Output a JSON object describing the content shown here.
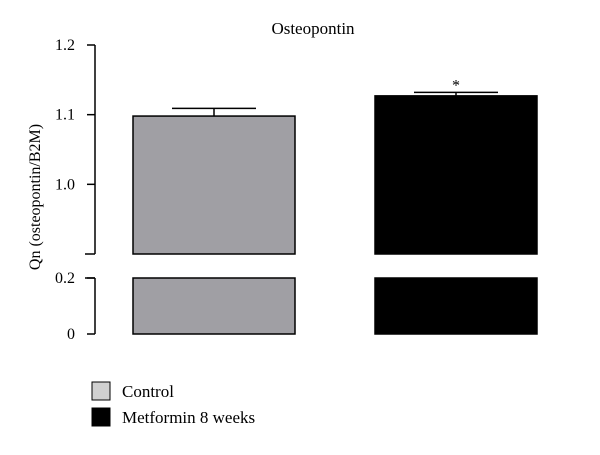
{
  "chart_data": {
    "type": "bar",
    "title": "Osteopontin",
    "xlabel": "",
    "ylabel": "Qn (osteopontin/B2M)",
    "categories": [
      "Control",
      "Metformin 8 weeks"
    ],
    "values": [
      1.098,
      1.127
    ],
    "errors": [
      0.011,
      0.005
    ],
    "colors": [
      "#a09fa4",
      "#000000"
    ],
    "annotations": [
      "",
      "*"
    ],
    "axis_break": {
      "lower_max": 0.2,
      "upper_min": 0.9
    },
    "ylim": [
      0,
      1.2
    ],
    "yticks": [
      {
        "value": 0,
        "label": "0"
      },
      {
        "value": 0.2,
        "label": "0.2"
      },
      {
        "value": 1.0,
        "label": "1.0"
      },
      {
        "value": 1.1,
        "label": "1.1"
      },
      {
        "value": 1.2,
        "label": "1.2"
      }
    ],
    "grid": false,
    "legend_position": "bottom-left"
  },
  "legend": {
    "items": [
      {
        "label": "Control",
        "color": "#d0d0d0"
      },
      {
        "label": "Metformin 8 weeks",
        "color": "#000000"
      }
    ]
  }
}
